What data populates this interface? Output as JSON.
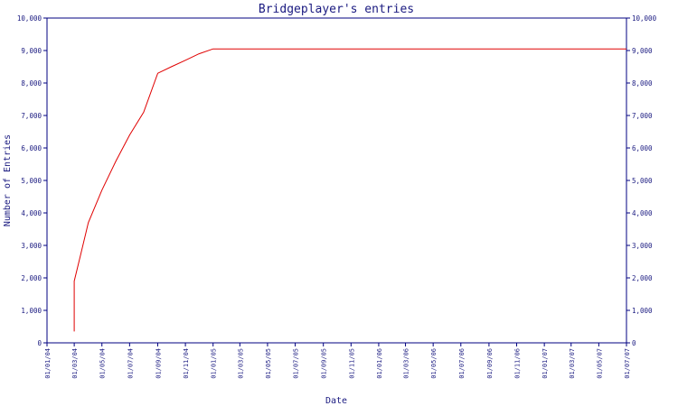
{
  "chart_data": {
    "type": "line",
    "title": "Bridgeplayer's entries",
    "xlabel": "Date",
    "ylabel": "Number of Entries",
    "ylim": [
      0,
      10000
    ],
    "y_ticks": [
      "0",
      "1,000",
      "2,000",
      "3,000",
      "4,000",
      "5,000",
      "6,000",
      "7,000",
      "8,000",
      "9,000",
      "10,000"
    ],
    "y_tick_values": [
      0,
      1000,
      2000,
      3000,
      4000,
      5000,
      6000,
      7000,
      8000,
      9000,
      10000
    ],
    "x_ticks": [
      "01/01/04",
      "01/03/04",
      "01/05/04",
      "01/07/04",
      "01/09/04",
      "01/11/04",
      "01/01/05",
      "01/03/05",
      "01/05/05",
      "01/07/05",
      "01/09/05",
      "01/11/05",
      "01/01/06",
      "01/03/06",
      "01/05/06",
      "01/07/06",
      "01/09/06",
      "01/11/06",
      "01/01/07",
      "01/03/07",
      "01/05/07",
      "01/07/07"
    ],
    "grid": false,
    "series": [
      {
        "color": "#e00000",
        "x": [
          "01/03/04",
          "01/03/04",
          "15/03/04",
          "01/04/04",
          "01/05/04",
          "01/06/04",
          "01/07/04",
          "01/08/04",
          "01/09/04",
          "01/10/04",
          "01/11/04",
          "01/12/04",
          "01/01/05",
          "01/03/05",
          "01/07/05",
          "01/01/06",
          "01/07/06",
          "01/01/07",
          "01/07/07"
        ],
        "values": [
          350,
          1900,
          2700,
          3700,
          4700,
          5600,
          6400,
          7100,
          8300,
          8500,
          8700,
          8900,
          9050,
          9050,
          9050,
          9050,
          9050,
          9050,
          9050
        ]
      }
    ]
  }
}
